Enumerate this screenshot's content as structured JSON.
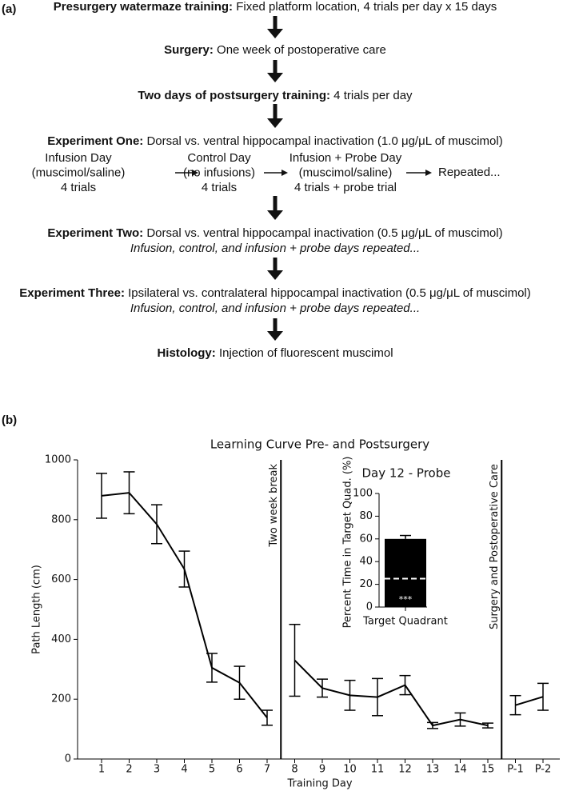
{
  "figure_a": {
    "label": "(a)",
    "steps": [
      {
        "bold": "Presurgery watermaze training:",
        "text": " Fixed platform location, 4 trials per day x 15 days"
      },
      {
        "bold": "Surgery:",
        "text": " One week of postoperative care"
      },
      {
        "bold": "Two days of postsurgery training:",
        "text": " 4 trials per day"
      },
      {
        "bold": "Experiment One:",
        "text": " Dorsal vs. ventral hippocampal inactivation (1.0 μg/μL of muscimol)",
        "substeps": [
          [
            "Infusion Day",
            "(muscimol/saline)",
            "4 trials"
          ],
          [
            "Control Day",
            "(no infusions)",
            "4 trials"
          ],
          [
            "Infusion + Probe Day",
            "(muscimol/saline)",
            "4 trials + probe trial"
          ],
          [
            "Repeated..."
          ]
        ]
      },
      {
        "bold": "Experiment Two:",
        "text": " Dorsal vs. ventral hippocampal inactivation (0.5 μg/μL of muscimol)",
        "note": "Infusion, control, and infusion + probe days repeated..."
      },
      {
        "bold": "Experiment Three:",
        "text": " Ipsilateral vs. contralateral hippocampal inactivation (0.5 μg/μL of muscimol)",
        "note": "Infusion, control, and infusion + probe days repeated..."
      },
      {
        "bold": "Histology:",
        "text": " Injection of fluorescent muscimol"
      }
    ]
  },
  "panel_b_label": "(b)",
  "chart_data": [
    {
      "type": "line",
      "title": "Learning Curve Pre- and Postsurgery",
      "xlabel": "Training Day",
      "ylabel": "Path Length (cm)",
      "categories": [
        "1",
        "2",
        "3",
        "4",
        "5",
        "6",
        "7",
        "8",
        "9",
        "10",
        "11",
        "12",
        "13",
        "14",
        "15",
        "P-1",
        "P-2"
      ],
      "values": [
        880,
        890,
        785,
        635,
        305,
        255,
        138,
        330,
        237,
        213,
        207,
        247,
        112,
        132,
        112,
        180,
        208
      ],
      "errors": [
        75,
        70,
        65,
        60,
        48,
        55,
        25,
        120,
        30,
        50,
        62,
        32,
        10,
        22,
        8,
        32,
        45
      ],
      "color": "#000000",
      "ylim": [
        0,
        1000
      ],
      "yticks": [
        0,
        200,
        400,
        600,
        800,
        1000
      ],
      "annotations": [
        {
          "text": "Two week break",
          "between": [
            "7",
            "8"
          ]
        },
        {
          "text": "Surgery and Postoperative Care",
          "between": [
            "15",
            "P-1"
          ]
        }
      ]
    },
    {
      "type": "bar",
      "title": "Day 12 - Probe",
      "ylabel": "Percent Time in Target Quad. (%)",
      "categories": [
        "Target Quadrant"
      ],
      "values": [
        60
      ],
      "errors": [
        3
      ],
      "color": "#000000",
      "ylim": [
        0,
        100
      ],
      "yticks": [
        0,
        20,
        40,
        60,
        80,
        100
      ],
      "reference_line": 25,
      "annotation": "***"
    }
  ]
}
